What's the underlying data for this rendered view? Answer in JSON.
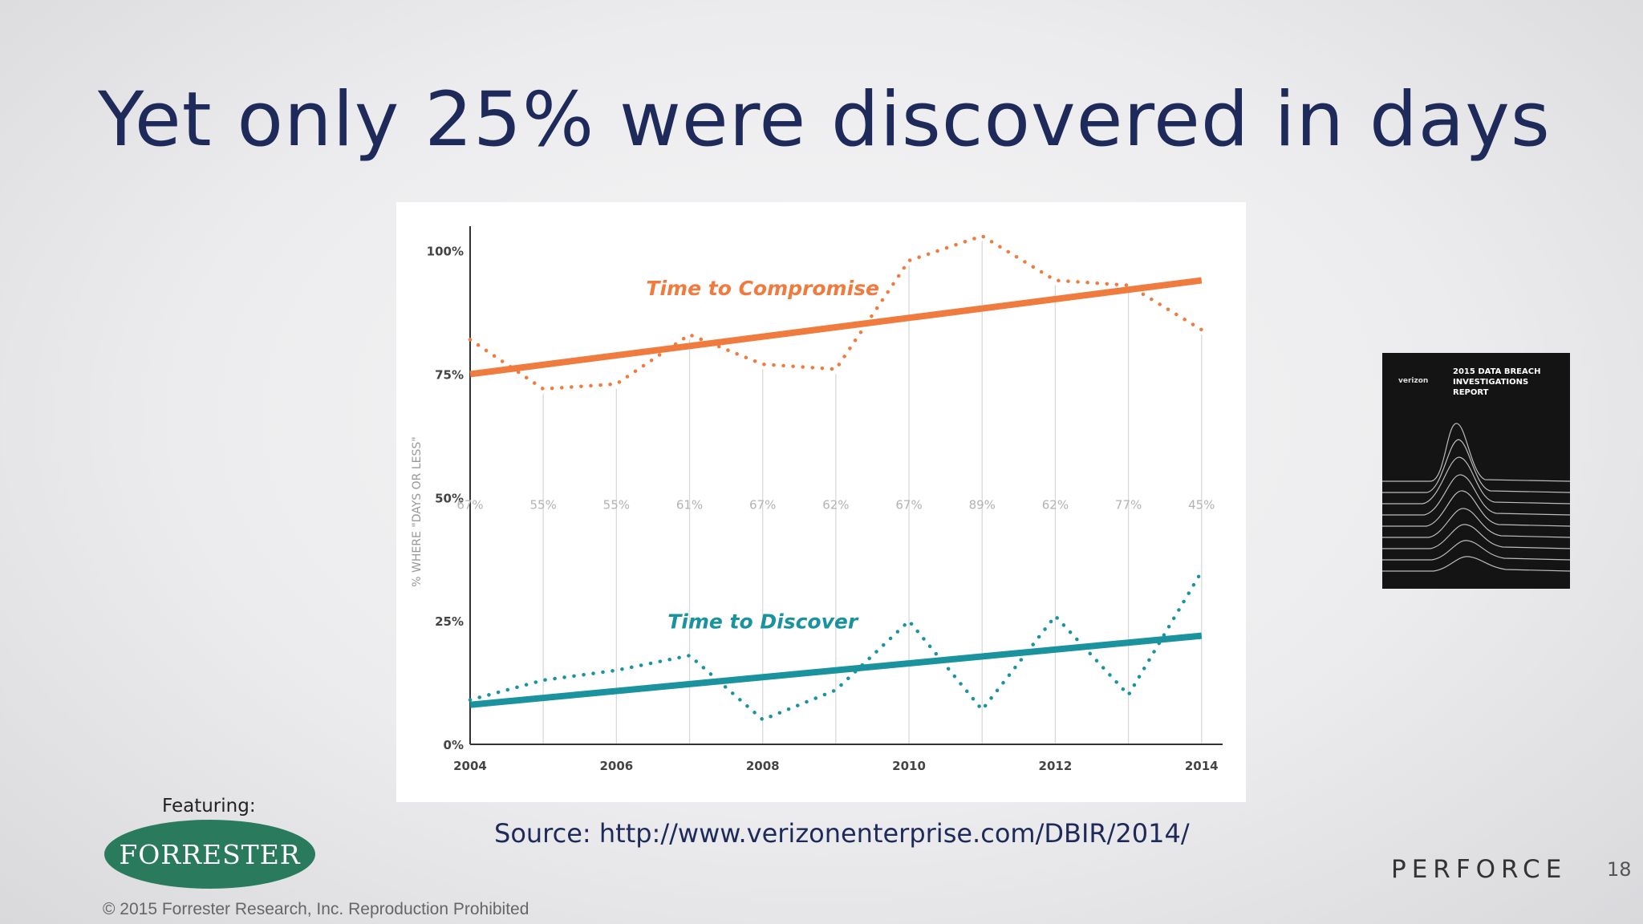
{
  "slide": {
    "title": "Yet only 25% were discovered in days",
    "source": "Source: http://www.verizonenterprise.com/DBIR/2014/",
    "featuring_label": "Featuring:",
    "forrester_logo_text": "FORRESTER",
    "copyright": "© 2015 Forrester Research, Inc. Reproduction Prohibited",
    "perforce_logo_text": "PERFORCE",
    "slide_number": "18",
    "report_cover": {
      "brand": "verizon",
      "title": "2015 DATA BREACH INVESTIGATIONS REPORT"
    }
  },
  "chart_data": {
    "type": "line",
    "title": "",
    "xlabel": "",
    "ylabel": "% WHERE \"DAYS OR LESS\"",
    "x": [
      2004,
      2005,
      2006,
      2007,
      2008,
      2009,
      2010,
      2011,
      2012,
      2013,
      2014
    ],
    "x_tick_labels": [
      "2004",
      "2006",
      "2008",
      "2010",
      "2012",
      "2014"
    ],
    "x_tick_values": [
      2004,
      2006,
      2008,
      2010,
      2012,
      2014
    ],
    "y_tick_labels": [
      "0%",
      "25%",
      "50%",
      "75%",
      "100%"
    ],
    "y_tick_values": [
      0,
      25,
      50,
      75,
      100
    ],
    "ylim": [
      0,
      104
    ],
    "xlim": [
      2004,
      2014.2
    ],
    "grid": "vertical",
    "gap_labels": [
      "67%",
      "55%",
      "55%",
      "61%",
      "67%",
      "62%",
      "67%",
      "89%",
      "62%",
      "77%",
      "45%"
    ],
    "gap_label_y": 48.5,
    "series": [
      {
        "name": "Time to Compromise",
        "color": "#f07b3f",
        "values": [
          82,
          72,
          73,
          83,
          77,
          76,
          98,
          103,
          94,
          93,
          84
        ],
        "trend": [
          75,
          94
        ]
      },
      {
        "name": "Time to Discover",
        "color": "#1a939e",
        "values": [
          9,
          13,
          15,
          18,
          5,
          11,
          25,
          7,
          26,
          10,
          35
        ],
        "trend": [
          8,
          22
        ]
      }
    ],
    "series_label_anchors": [
      [
        2008,
        91
      ],
      [
        2008,
        23.5
      ]
    ]
  }
}
